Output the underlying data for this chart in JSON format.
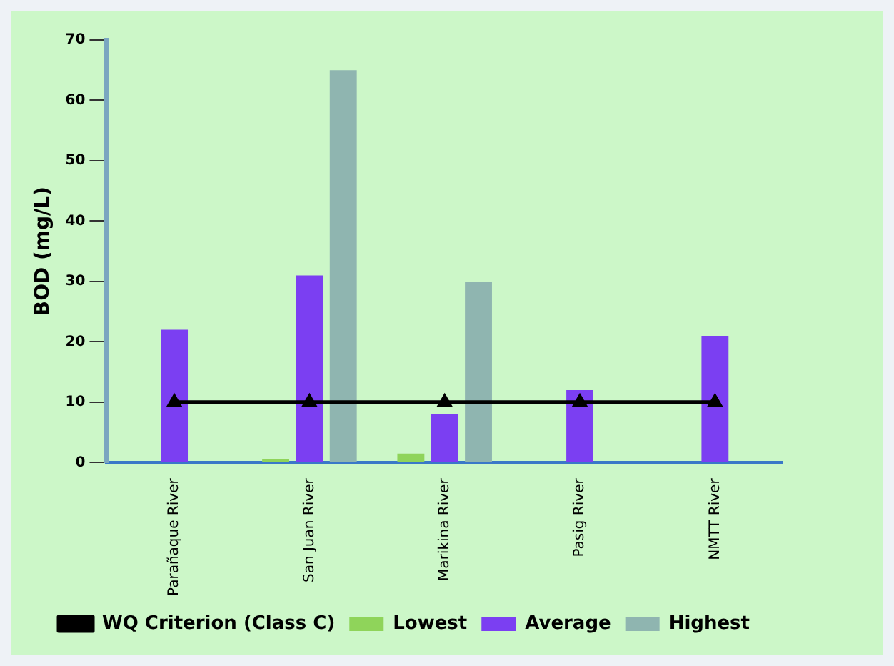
{
  "chart_data": {
    "type": "bar",
    "ylabel": "BOD (mg/L)",
    "categories": [
      "Parañaque River",
      "San Juan River",
      "Marikina River",
      "Pasig River",
      "NMTT River"
    ],
    "series": [
      {
        "name": "Lowest",
        "color": "#8fd45a",
        "values": [
          null,
          0.5,
          1.5,
          null,
          null
        ]
      },
      {
        "name": "Average",
        "color": "#7b3ff2",
        "values": [
          22,
          31,
          8,
          12,
          21
        ]
      },
      {
        "name": "Highest",
        "color": "#8fb5b0",
        "values": [
          null,
          65,
          30,
          null,
          null
        ]
      },
      {
        "name": "WQ Criterion (Class C)",
        "type": "line",
        "color": "#000000",
        "marker": "triangle",
        "values": [
          10,
          10,
          10,
          10,
          10
        ]
      }
    ],
    "ylim": [
      0,
      70
    ],
    "yticks": [
      0,
      10,
      20,
      30,
      40,
      50,
      60,
      70
    ],
    "grid": false,
    "legend": "bottom"
  }
}
